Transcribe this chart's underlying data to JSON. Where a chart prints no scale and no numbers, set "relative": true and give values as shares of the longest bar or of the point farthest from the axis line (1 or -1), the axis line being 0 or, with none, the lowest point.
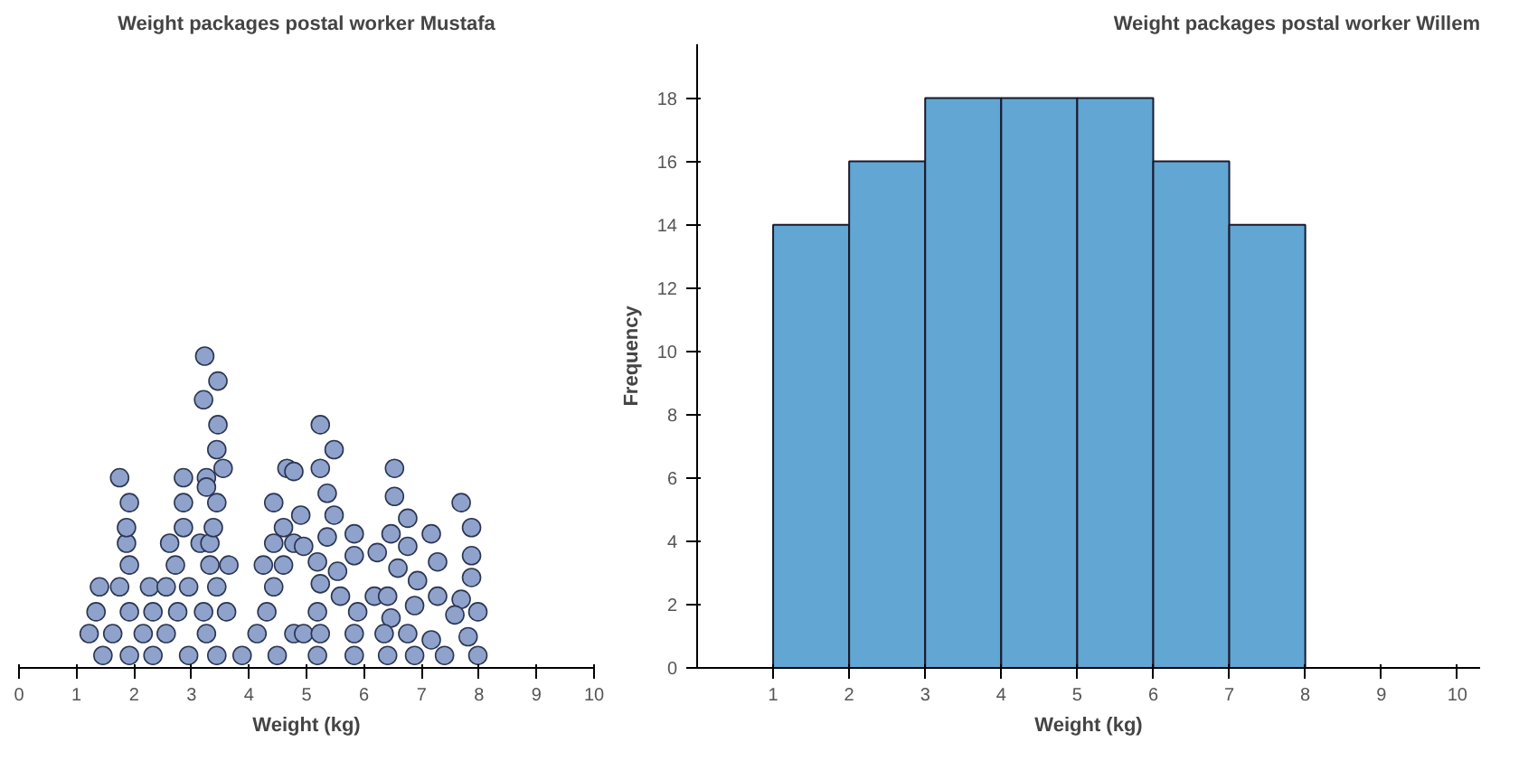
{
  "chart_data": [
    {
      "type": "scatter",
      "title": "Weight packages postal worker Mustafa",
      "xlabel": "Weight (kg)",
      "relative": true,
      "xlim": [
        0,
        10
      ],
      "xticks": [
        0,
        1,
        2,
        3,
        4,
        5,
        6,
        7,
        8,
        9,
        10
      ],
      "tick_labels": "x",
      "marker": "circle",
      "color": "#8ea2cc",
      "x": [
        1.46,
        1.92,
        2.33,
        2.95,
        3.44,
        3.88,
        4.49,
        1.22,
        1.63,
        2.16,
        2.56,
        3.26,
        4.14,
        4.78,
        1.34,
        1.92,
        2.33,
        2.76,
        3.21,
        3.61,
        4.31,
        1.4,
        1.75,
        2.27,
        2.56,
        2.95,
        3.44,
        4.43,
        1.92,
        2.72,
        3.32,
        3.65,
        4.25,
        4.6,
        1.87,
        2.62,
        3.15,
        3.32,
        4.43,
        4.78,
        1.87,
        2.86,
        3.38,
        4.6,
        1.92,
        2.86,
        3.44,
        4.43,
        1.75,
        2.86,
        3.26,
        3.55,
        4.66,
        3.23,
        3.46,
        3.21,
        3.46,
        3.44,
        3.26,
        5.24,
        5.48,
        5.24,
        5.36,
        5.48,
        5.36,
        5.19,
        4.9,
        4.95,
        4.78,
        5.24,
        5.54,
        5.19,
        5.59,
        5.83,
        5.83,
        6.18,
        5.89,
        4.95,
        5.24,
        5.19,
        5.83,
        5.83,
        6.53,
        6.53,
        6.76,
        6.47,
        6.76,
        6.23,
        6.59,
        6.93,
        6.41,
        6.88,
        6.47,
        6.35,
        6.76,
        6.41,
        6.88,
        7.17,
        7.28,
        7.28,
        7.17,
        7.4,
        7.69,
        7.87,
        7.87,
        7.87,
        7.69,
        7.98,
        7.58,
        7.81,
        7.98
      ],
      "values": [
        0.04,
        0.04,
        0.04,
        0.04,
        0.04,
        0.04,
        0.04,
        0.11,
        0.11,
        0.11,
        0.11,
        0.11,
        0.11,
        0.11,
        0.18,
        0.18,
        0.18,
        0.18,
        0.18,
        0.18,
        0.18,
        0.26,
        0.26,
        0.26,
        0.26,
        0.26,
        0.26,
        0.26,
        0.33,
        0.33,
        0.33,
        0.33,
        0.33,
        0.33,
        0.4,
        0.4,
        0.4,
        0.4,
        0.4,
        0.4,
        0.45,
        0.45,
        0.45,
        0.45,
        0.53,
        0.53,
        0.53,
        0.53,
        0.61,
        0.61,
        0.61,
        0.64,
        0.64,
        1.0,
        0.92,
        0.86,
        0.78,
        0.7,
        0.58,
        0.78,
        0.7,
        0.64,
        0.56,
        0.49,
        0.42,
        0.34,
        0.49,
        0.39,
        0.63,
        0.27,
        0.31,
        0.18,
        0.23,
        0.43,
        0.36,
        0.23,
        0.18,
        0.11,
        0.11,
        0.04,
        0.11,
        0.04,
        0.64,
        0.55,
        0.48,
        0.43,
        0.39,
        0.37,
        0.32,
        0.28,
        0.23,
        0.2,
        0.16,
        0.11,
        0.11,
        0.04,
        0.04,
        0.43,
        0.34,
        0.23,
        0.09,
        0.04,
        0.53,
        0.45,
        0.36,
        0.29,
        0.22,
        0.18,
        0.17,
        0.1,
        0.04
      ]
    },
    {
      "type": "histogram",
      "title": "Weight packages postal worker Willem",
      "xlabel": "Weight (kg)",
      "ylabel": "Frequency",
      "bins": [
        1,
        2,
        3,
        4,
        5,
        6,
        7,
        8
      ],
      "values": [
        14,
        16,
        18,
        18,
        18,
        16,
        14
      ],
      "color": "#62a6d3",
      "xlim": [
        0,
        10.3
      ],
      "xticks": [
        1,
        2,
        3,
        4,
        5,
        6,
        7,
        8,
        9,
        10
      ],
      "ylim": [
        0,
        19.7
      ],
      "yticks": [
        0,
        2,
        4,
        6,
        8,
        10,
        12,
        14,
        16,
        18
      ]
    }
  ]
}
